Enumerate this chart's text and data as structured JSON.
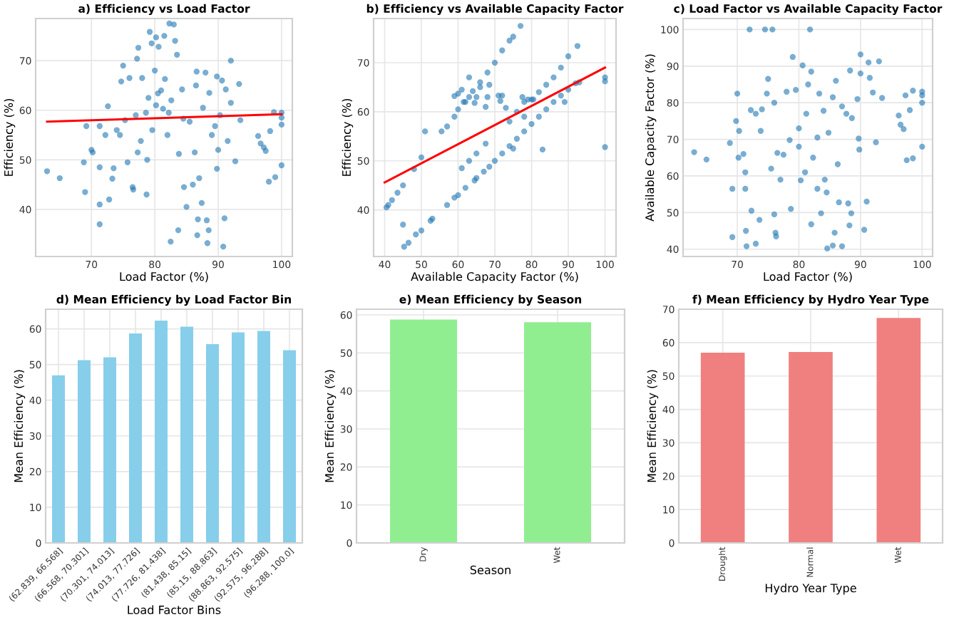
{
  "chart_data": [
    {
      "type": "scatter",
      "title": "a) Efficiency vs Load Factor",
      "xlabel": "Load Factor (%)",
      "ylabel": "Efficiency (%)",
      "grid": true,
      "xlim": [
        61.2,
        101.7
      ],
      "ylim": [
        30.5,
        78.5
      ],
      "xticks": [
        70,
        80,
        90,
        100
      ],
      "yticks": [
        40,
        50,
        60,
        70
      ],
      "series": [
        {
          "type": "scatter",
          "marker": "circle",
          "color": "#1f77b4",
          "x": [
            63,
            65,
            69,
            68.8,
            69.2,
            70,
            70.2,
            71.3,
            71.3,
            71.3,
            71.3,
            72.2,
            72.6,
            72.8,
            73.3,
            73.5,
            74,
            74.5,
            74.7,
            75,
            75.3,
            75.7,
            76,
            76.5,
            76.6,
            77,
            77.2,
            77.4,
            77.3,
            77.8,
            78,
            78.6,
            78.8,
            78.7,
            79,
            79.2,
            79.5,
            79.6,
            80,
            80.2,
            80.2,
            80.5,
            80.6,
            81,
            81.3,
            81.5,
            81.6,
            82,
            82.2,
            82.6,
            82.5,
            82.3,
            83,
            83.2,
            83.5,
            83.8,
            83.7,
            84.3,
            84.5,
            84.6,
            85,
            85.5,
            86,
            86.3,
            86.5,
            86.6,
            86.8,
            86.7,
            87,
            87.4,
            87.6,
            88,
            88.2,
            88.3,
            88.5,
            88.6,
            89,
            89.5,
            89.8,
            89.8,
            90,
            90.3,
            90.6,
            90.8,
            91,
            91.2,
            91.5,
            92,
            92,
            92.7,
            93.3,
            93.5,
            96.3,
            96.7,
            97.2,
            97.5,
            98,
            98.2,
            98.8,
            99,
            100,
            100,
            100,
            100
          ],
          "values": [
            47.7,
            46.3,
            43.5,
            49.5,
            56.8,
            52,
            51.5,
            56.8,
            48.5,
            41,
            37,
            55,
            60.8,
            42,
            46.2,
            48.3,
            56,
            55,
            65.8,
            69,
            58,
            49.5,
            66.5,
            44.5,
            44,
            59,
            70.4,
            72.6,
            51.5,
            53.8,
            66.5,
            59.5,
            50,
            43,
            62.5,
            75.8,
            73.5,
            56,
            68,
            74.7,
            61,
            63.4,
            72.8,
            64,
            60.3,
            75,
            66.3,
            55,
            59.5,
            62,
            33.5,
            77.5,
            77.3,
            74,
            71.2,
            51.2,
            35.8,
            64.2,
            58.3,
            44.5,
            40.5,
            57.7,
            45,
            51.5,
            65,
            67.8,
            38,
            34.8,
            46.3,
            41.3,
            60.5,
            67.6,
            37.8,
            33.2,
            35.8,
            63.5,
            55,
            56.8,
            66.8,
            48.2,
            52,
            59,
            66,
            32.5,
            38.2,
            64.2,
            53.8,
            70,
            61.5,
            49.7,
            65.3,
            58,
            54.8,
            53.3,
            52.5,
            51.8,
            45.6,
            55.8,
            59.6,
            46.5,
            59.5,
            58.5,
            57.1,
            48.9
          ]
        },
        {
          "type": "line",
          "color": "#ff0000",
          "x": [
            63,
            100
          ],
          "values": [
            57.7,
            59.2
          ]
        }
      ]
    },
    {
      "type": "scatter",
      "title": "b) Efficiency vs Available Capacity Factor",
      "xlabel": "Available Capacity Factor (%)",
      "ylabel": "Efficiency (%)",
      "grid": true,
      "xlim": [
        37,
        103
      ],
      "ylim": [
        30.5,
        79
      ],
      "xticks": [
        40,
        50,
        60,
        70,
        80,
        90,
        100
      ],
      "yticks": [
        40,
        50,
        60,
        70
      ],
      "series": [
        {
          "type": "scatter",
          "marker": "circle",
          "color": "#1f77b4",
          "x": [
            45.3,
            46.5,
            48.5,
            50,
            52.5,
            53,
            57,
            59,
            60,
            62,
            64.5,
            65,
            67,
            68.5,
            70,
            72,
            74,
            76,
            78,
            80,
            82,
            84,
            86,
            88,
            90,
            92,
            93,
            61,
            63,
            65,
            67.5,
            76,
            78,
            80,
            82,
            84,
            86,
            88,
            90,
            92.5,
            55.5,
            57,
            59,
            60,
            62,
            63,
            64,
            66,
            68,
            70,
            72,
            74,
            75,
            77,
            40.5,
            41,
            42,
            43.5,
            45,
            45,
            48,
            50,
            51,
            59,
            60,
            61,
            61.5,
            63,
            64.5,
            65,
            66,
            67.5,
            68,
            68.5,
            71,
            71.5,
            72,
            73,
            74,
            75,
            77.5,
            78,
            79,
            80.5,
            83,
            89,
            100,
            100,
            100
          ],
          "values": [
            32.5,
            33.3,
            35,
            35.8,
            37.8,
            38.2,
            41,
            42.5,
            43,
            44.5,
            46,
            46.5,
            47.8,
            48.8,
            50,
            51.5,
            53,
            54.5,
            56,
            57.5,
            59,
            60.5,
            62,
            63.3,
            64.5,
            65.8,
            66,
            48.5,
            50,
            51.5,
            53.5,
            60,
            62,
            62.5,
            64,
            65.5,
            67,
            69,
            71.3,
            73.4,
            56,
            57,
            59,
            60.5,
            62,
            63,
            64.2,
            66,
            68,
            70,
            72.5,
            74.5,
            75.3,
            77.5,
            40.5,
            41,
            42,
            43.5,
            45,
            37,
            48.3,
            50.7,
            56,
            63.2,
            63.7,
            64.5,
            62,
            67,
            61.8,
            63,
            65,
            61,
            63,
            65.5,
            63.3,
            62.2,
            63.3,
            60.8,
            58,
            52.5,
            63,
            59,
            62.5,
            62.5,
            52.3,
            62,
            67,
            66.2,
            52.8
          ]
        },
        {
          "type": "line",
          "color": "#ff0000",
          "x": [
            40,
            100
          ],
          "values": [
            45.6,
            69
          ]
        }
      ]
    },
    {
      "type": "scatter",
      "title": "c) Load Factor vs Available Capacity Factor",
      "xlabel": "Load Factor (%)",
      "ylabel": "Available Capacity Factor (%)",
      "grid": true,
      "xlim": [
        61.2,
        101.7
      ],
      "ylim": [
        38,
        103
      ],
      "xticks": [
        70,
        80,
        90,
        100
      ],
      "yticks": [
        40,
        50,
        60,
        70,
        80,
        90,
        100
      ],
      "series": [
        {
          "type": "scatter",
          "marker": "circle",
          "color": "#1f77b4",
          "x": [
            63,
            65,
            68.8,
            69.2,
            69.2,
            69.8,
            70,
            70.2,
            70.3,
            71,
            71.3,
            71.3,
            71.4,
            71.5,
            72,
            72.2,
            72.3,
            73,
            73,
            73.6,
            73.8,
            74,
            74.5,
            74.8,
            75,
            75.5,
            75.7,
            76,
            76.2,
            76.3,
            76,
            76.5,
            77,
            77.5,
            78,
            78.5,
            78.7,
            79,
            79.5,
            80,
            80,
            80.3,
            80.6,
            81,
            81.2,
            81.5,
            81.8,
            82,
            82,
            82.3,
            83,
            83,
            83.3,
            83.6,
            84,
            84.2,
            84.5,
            84.6,
            84.8,
            85.5,
            85.5,
            85.8,
            86,
            86.3,
            86.5,
            87,
            87,
            87.7,
            88,
            88.2,
            88.3,
            88.5,
            88.6,
            89.5,
            89.7,
            89.8,
            90,
            90,
            90.6,
            91,
            91.3,
            91.5,
            92,
            92.5,
            93,
            93.5,
            96.2,
            96.5,
            97,
            97.3,
            97.5,
            98,
            98.5,
            98.5,
            100,
            100,
            100,
            100
          ],
          "values": [
            66.5,
            64.5,
            69,
            56.5,
            43.3,
            75,
            82.5,
            65,
            72.3,
            66,
            61,
            56.5,
            45,
            40.8,
            100,
            78,
            50.5,
            77,
            41.5,
            48,
            72.3,
            78.2,
            100,
            82.5,
            86.5,
            62,
            100,
            49.5,
            44.5,
            43.5,
            80,
            66.3,
            59,
            65.8,
            83,
            69.8,
            51,
            92.5,
            83.5,
            68,
            73,
            58.8,
            90.2,
            61,
            77,
            85,
            100,
            88.5,
            46.8,
            65,
            70.5,
            56.5,
            82.5,
            49.8,
            77.8,
            59,
            55.5,
            40.2,
            71.8,
            41,
            81.5,
            44.5,
            86,
            63.2,
            52.8,
            79,
            40.8,
            77,
            52.5,
            46.5,
            88.8,
            49.8,
            75.8,
            81,
            70.2,
            67.2,
            93.2,
            88,
            45.3,
            53,
            91,
            86.8,
            82.8,
            69.2,
            91.3,
            81.3,
            76.5,
            74,
            72.8,
            82,
            64.3,
            78,
            64.8,
            83.3,
            83,
            82,
            80,
            68
          ]
        }
      ]
    },
    {
      "type": "bar",
      "title": "d) Mean Efficiency by Load Factor Bin",
      "xlabel": "Load Factor Bins",
      "ylabel": "Mean Efficiency (%)",
      "grid": true,
      "color": "#87ceeb",
      "ylim": [
        0,
        65.5
      ],
      "yticks": [
        0,
        10,
        20,
        30,
        40,
        50,
        60
      ],
      "categories": [
        "(62.839, 66.568]",
        "(66.568, 70.301]",
        "(70.301, 74.013]",
        "(74.013, 77.726]",
        "(77.726, 81.438]",
        "(81.438, 85.15]",
        "(85.15, 88.863]",
        "(88.863, 92.575]",
        "(92.575, 96.288]",
        "(96.288, 100.0]"
      ],
      "values": [
        47,
        51.2,
        52,
        58.7,
        62.3,
        60.6,
        55.7,
        59,
        59.4,
        54
      ]
    },
    {
      "type": "bar",
      "title": "e) Mean Efficiency by Season",
      "xlabel": "Season",
      "ylabel": "Mean Efficiency (%)",
      "grid": true,
      "color": "#90ee90",
      "ylim": [
        0,
        61.5
      ],
      "yticks": [
        0,
        10,
        20,
        30,
        40,
        50,
        60
      ],
      "categories": [
        "Dry",
        "Wet"
      ],
      "values": [
        58.8,
        58.1
      ]
    },
    {
      "type": "bar",
      "title": "f) Mean Efficiency by Hydro Year Type",
      "xlabel": "Hydro Year Type",
      "ylabel": "Mean Efficiency (%)",
      "grid": true,
      "color": "#f08080",
      "ylim": [
        0,
        70
      ],
      "yticks": [
        0,
        10,
        20,
        30,
        40,
        50,
        60,
        70
      ],
      "categories": [
        "Drought",
        "Normal",
        "Wet"
      ],
      "values": [
        57,
        57.2,
        67.4
      ]
    }
  ]
}
